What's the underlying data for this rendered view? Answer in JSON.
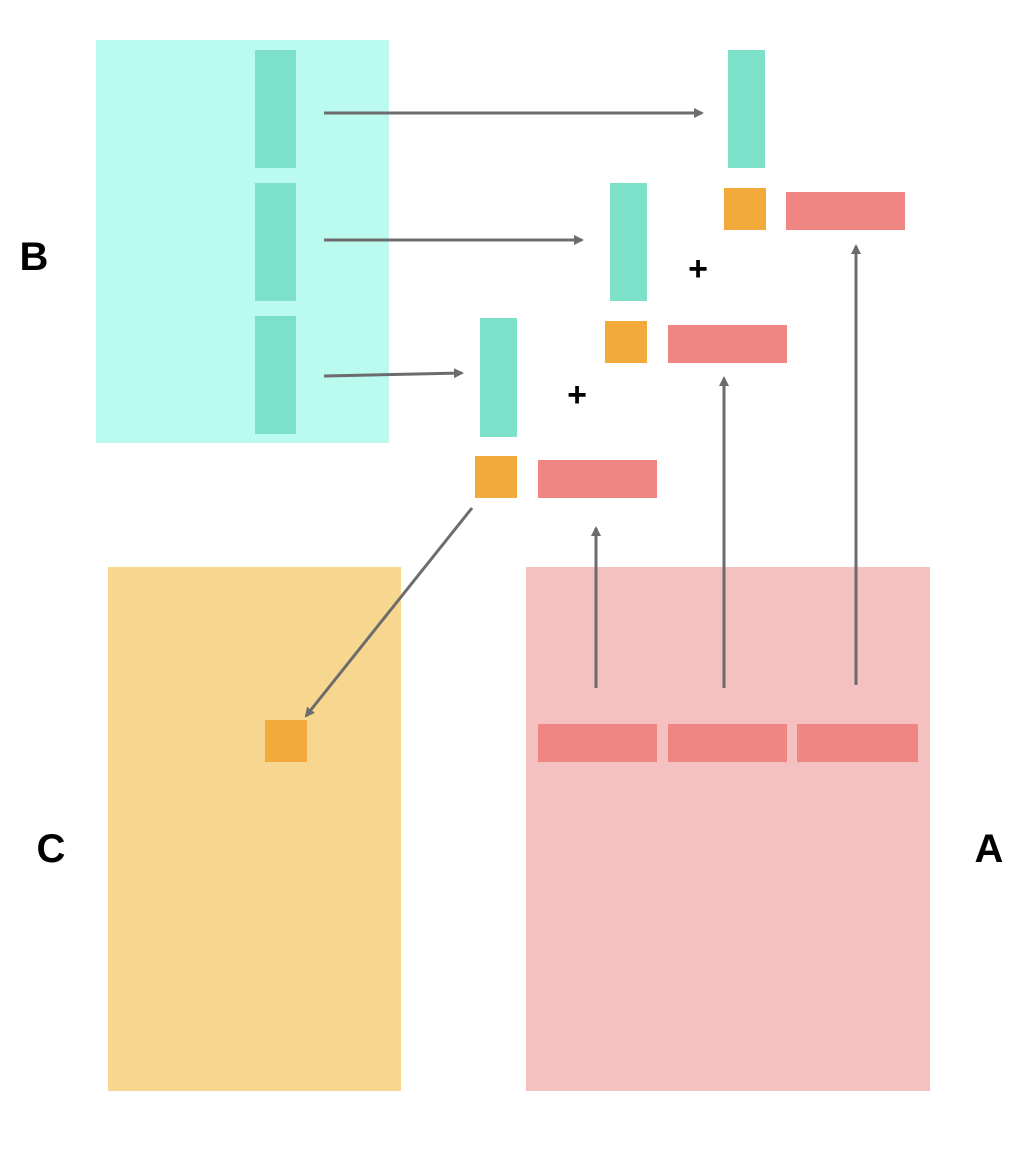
{
  "labels": {
    "matrix_b": "B",
    "matrix_c": "C",
    "matrix_a": "A",
    "plus_upper": "+",
    "plus_lower": "+"
  },
  "colors": {
    "background": "#ffffff",
    "matrix_b_fill": "#bbfaef",
    "matrix_b_column": "#7de0c8",
    "matrix_c_fill": "#f7d78f",
    "matrix_c_cell": "#f2ab3b",
    "matrix_a_fill": "#f4c0c0",
    "matrix_a_row": "#ef8683",
    "arrow": "#6c6c6c",
    "text": "#000000"
  }
}
